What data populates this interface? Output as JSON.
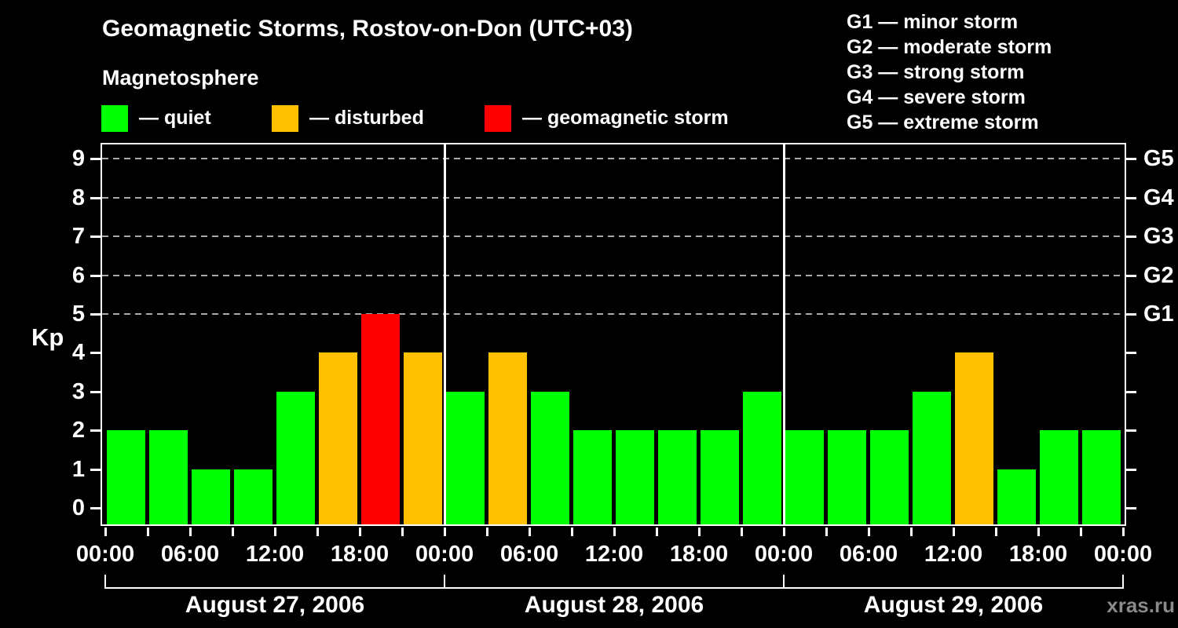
{
  "title": "Geomagnetic Storms, Rostov-on-Don (UTC+03)",
  "subtitle": "Magnetosphere",
  "legend": {
    "items": [
      {
        "status": "quiet",
        "label": "— quiet",
        "color": "#00ff00"
      },
      {
        "status": "disturbed",
        "label": "— disturbed",
        "color": "#ffc000"
      },
      {
        "status": "storm",
        "label": "— geomagnetic storm",
        "color": "#ff0000"
      }
    ]
  },
  "storm_scale": [
    {
      "code": "G1",
      "label": "G1 — minor storm"
    },
    {
      "code": "G2",
      "label": "G2 — moderate storm"
    },
    {
      "code": "G3",
      "label": "G3 — strong storm"
    },
    {
      "code": "G4",
      "label": "G4 — severe storm"
    },
    {
      "code": "G5",
      "label": "G5 — extreme storm"
    }
  ],
  "watermark": "xras.ru",
  "chart_data": {
    "type": "bar",
    "ylabel": "Kp",
    "ylim": [
      0,
      9
    ],
    "y_ticks": [
      0,
      1,
      2,
      3,
      4,
      5,
      6,
      7,
      8,
      9
    ],
    "gridlines_kp": [
      5,
      6,
      7,
      8,
      9
    ],
    "grid": "dashed horizontal at G-storm levels only",
    "legend_position": "top",
    "right_axis_labels": [
      {
        "kp": 5,
        "label": "G1"
      },
      {
        "kp": 6,
        "label": "G2"
      },
      {
        "kp": 7,
        "label": "G3"
      },
      {
        "kp": 8,
        "label": "G4"
      },
      {
        "kp": 9,
        "label": "G5"
      }
    ],
    "hours_per_bar": 3,
    "x_tick_labels": [
      "00:00",
      "06:00",
      "12:00",
      "18:00",
      "00:00",
      "06:00",
      "12:00",
      "18:00",
      "00:00",
      "06:00",
      "12:00",
      "18:00",
      "00:00"
    ],
    "colors_by_status": {
      "quiet": "#00ff00",
      "disturbed": "#ffc000",
      "storm": "#ff0000"
    },
    "days": [
      {
        "date": "August 27, 2006",
        "slot_start_times": [
          "00:00",
          "03:00",
          "06:00",
          "09:00",
          "12:00",
          "15:00",
          "18:00",
          "21:00"
        ],
        "values": [
          2,
          2,
          1,
          1,
          3,
          4,
          5,
          4
        ],
        "statuses": [
          "quiet",
          "quiet",
          "quiet",
          "quiet",
          "quiet",
          "disturbed",
          "storm",
          "disturbed"
        ]
      },
      {
        "date": "August 28, 2006",
        "slot_start_times": [
          "00:00",
          "03:00",
          "06:00",
          "09:00",
          "12:00",
          "15:00",
          "18:00",
          "21:00"
        ],
        "values": [
          3,
          4,
          3,
          2,
          2,
          2,
          2,
          3
        ],
        "statuses": [
          "quiet",
          "disturbed",
          "quiet",
          "quiet",
          "quiet",
          "quiet",
          "quiet",
          "quiet"
        ]
      },
      {
        "date": "August 29, 2006",
        "slot_start_times": [
          "00:00",
          "03:00",
          "06:00",
          "09:00",
          "12:00",
          "15:00",
          "18:00",
          "21:00"
        ],
        "values": [
          2,
          2,
          2,
          3,
          4,
          1,
          2,
          2
        ],
        "statuses": [
          "quiet",
          "quiet",
          "quiet",
          "quiet",
          "disturbed",
          "quiet",
          "quiet",
          "quiet"
        ]
      }
    ]
  }
}
